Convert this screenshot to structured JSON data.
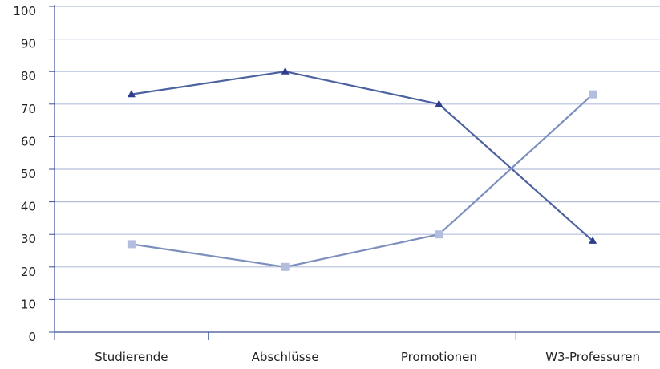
{
  "chart_data": {
    "type": "line",
    "categories": [
      "Studierende",
      "Abschlüsse",
      "Promotionen",
      "W3-Professuren"
    ],
    "series": [
      {
        "values": [
          73,
          80,
          70,
          28
        ],
        "color": "#2e3d8c",
        "line_color": "#4c63a0",
        "marker": "triangle"
      },
      {
        "values": [
          27,
          20,
          30,
          73
        ],
        "color": "#b3bedf",
        "line_color": "#7d8fbd",
        "marker": "square"
      }
    ],
    "ylim": [
      0,
      100
    ],
    "yticks": [
      0,
      10,
      20,
      30,
      40,
      50,
      60,
      70,
      80,
      90,
      100
    ],
    "ytick_labels": [
      "0",
      "10",
      "20",
      "30",
      "40",
      "50",
      "60",
      "70",
      "80",
      "90",
      "100"
    ],
    "grid": true,
    "grid_color": "#b4bfde",
    "axis_color": "#3a4f95",
    "legend": "none"
  }
}
